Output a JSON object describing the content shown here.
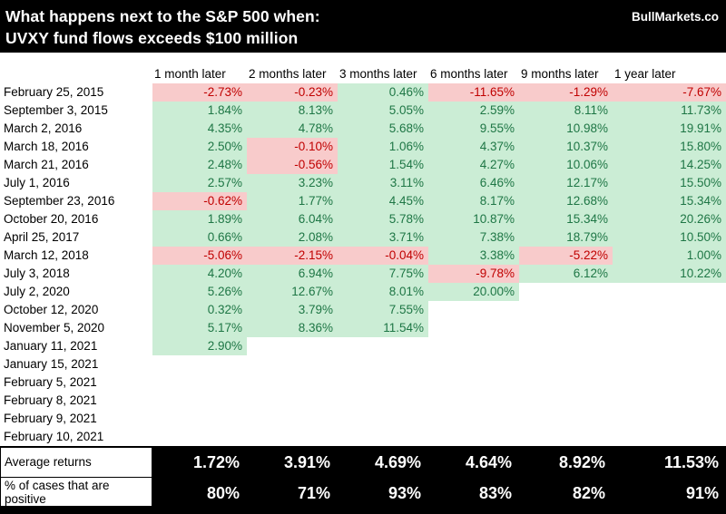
{
  "header": {
    "title_line1": "What happens next to the S&P 500 when:",
    "title_line2": "UVXY fund flows exceeds $100 million",
    "brand": "BullMarkets.co"
  },
  "table": {
    "columns": [
      "1 month later",
      "2 months later",
      "3 months later",
      "6 months later",
      "9 months later",
      "1 year later"
    ],
    "rows": [
      {
        "date": "February 25, 2015",
        "values": [
          "-2.73%",
          "-0.23%",
          "0.46%",
          "-11.65%",
          "-1.29%",
          "-7.67%"
        ]
      },
      {
        "date": "September 3, 2015",
        "values": [
          "1.84%",
          "8.13%",
          "5.05%",
          "2.59%",
          "8.11%",
          "11.73%"
        ]
      },
      {
        "date": "March 2, 2016",
        "values": [
          "4.35%",
          "4.78%",
          "5.68%",
          "9.55%",
          "10.98%",
          "19.91%"
        ]
      },
      {
        "date": "March 18, 2016",
        "values": [
          "2.50%",
          "-0.10%",
          "1.06%",
          "4.37%",
          "10.37%",
          "15.80%"
        ]
      },
      {
        "date": "March 21, 2016",
        "values": [
          "2.48%",
          "-0.56%",
          "1.54%",
          "4.27%",
          "10.06%",
          "14.25%"
        ]
      },
      {
        "date": "July 1, 2016",
        "values": [
          "2.57%",
          "3.23%",
          "3.11%",
          "6.46%",
          "12.17%",
          "15.50%"
        ]
      },
      {
        "date": "September 23, 2016",
        "values": [
          "-0.62%",
          "1.77%",
          "4.45%",
          "8.17%",
          "12.68%",
          "15.34%"
        ]
      },
      {
        "date": "October 20, 2016",
        "values": [
          "1.89%",
          "6.04%",
          "5.78%",
          "10.87%",
          "15.34%",
          "20.26%"
        ]
      },
      {
        "date": "April 25, 2017",
        "values": [
          "0.66%",
          "2.08%",
          "3.71%",
          "7.38%",
          "18.79%",
          "10.50%"
        ]
      },
      {
        "date": "March 12, 2018",
        "values": [
          "-5.06%",
          "-2.15%",
          "-0.04%",
          "3.38%",
          "-5.22%",
          "1.00%"
        ]
      },
      {
        "date": "July 3, 2018",
        "values": [
          "4.20%",
          "6.94%",
          "7.75%",
          "-9.78%",
          "6.12%",
          "10.22%"
        ]
      },
      {
        "date": "July 2, 2020",
        "values": [
          "5.26%",
          "12.67%",
          "8.01%",
          "20.00%",
          "",
          ""
        ]
      },
      {
        "date": "October 12, 2020",
        "values": [
          "0.32%",
          "3.79%",
          "7.55%",
          "",
          "",
          ""
        ]
      },
      {
        "date": "November 5, 2020",
        "values": [
          "5.17%",
          "8.36%",
          "11.54%",
          "",
          "",
          ""
        ]
      },
      {
        "date": "January 11, 2021",
        "values": [
          "2.90%",
          "",
          "",
          "",
          "",
          ""
        ]
      },
      {
        "date": "January 15, 2021",
        "values": [
          "",
          "",
          "",
          "",
          "",
          ""
        ]
      },
      {
        "date": "February 5, 2021",
        "values": [
          "",
          "",
          "",
          "",
          "",
          ""
        ]
      },
      {
        "date": "February 8, 2021",
        "values": [
          "",
          "",
          "",
          "",
          "",
          ""
        ]
      },
      {
        "date": "February 9, 2021",
        "values": [
          "",
          "",
          "",
          "",
          "",
          ""
        ]
      },
      {
        "date": "February 10, 2021",
        "values": [
          "",
          "",
          "",
          "",
          "",
          ""
        ]
      }
    ],
    "summary": [
      {
        "label": "Average returns",
        "values": [
          "1.72%",
          "3.91%",
          "4.69%",
          "4.64%",
          "8.92%",
          "11.53%"
        ]
      },
      {
        "label": "% of cases that are positive",
        "values": [
          "80%",
          "71%",
          "93%",
          "83%",
          "82%",
          "91%"
        ]
      }
    ]
  },
  "colors": {
    "positive_bg": "#CBEDD5",
    "positive_text": "#1E7645",
    "negative_bg": "#F8CBCB",
    "negative_text": "#C00000",
    "header_bg": "#000000",
    "header_text": "#FFFFFF"
  },
  "chart_data": {
    "type": "table",
    "title": "What happens next to the S&P 500 when: UVXY fund flows exceeds $100 million",
    "source": "BullMarkets.co",
    "columns": [
      "1 month later",
      "2 months later",
      "3 months later",
      "6 months later",
      "9 months later",
      "1 year later"
    ],
    "rows": [
      {
        "date": "February 25, 2015",
        "values": [
          -2.73,
          -0.23,
          0.46,
          -11.65,
          -1.29,
          -7.67
        ]
      },
      {
        "date": "September 3, 2015",
        "values": [
          1.84,
          8.13,
          5.05,
          2.59,
          8.11,
          11.73
        ]
      },
      {
        "date": "March 2, 2016",
        "values": [
          4.35,
          4.78,
          5.68,
          9.55,
          10.98,
          19.91
        ]
      },
      {
        "date": "March 18, 2016",
        "values": [
          2.5,
          -0.1,
          1.06,
          4.37,
          10.37,
          15.8
        ]
      },
      {
        "date": "March 21, 2016",
        "values": [
          2.48,
          -0.56,
          1.54,
          4.27,
          10.06,
          14.25
        ]
      },
      {
        "date": "July 1, 2016",
        "values": [
          2.57,
          3.23,
          3.11,
          6.46,
          12.17,
          15.5
        ]
      },
      {
        "date": "September 23, 2016",
        "values": [
          -0.62,
          1.77,
          4.45,
          8.17,
          12.68,
          15.34
        ]
      },
      {
        "date": "October 20, 2016",
        "values": [
          1.89,
          6.04,
          5.78,
          10.87,
          15.34,
          20.26
        ]
      },
      {
        "date": "April 25, 2017",
        "values": [
          0.66,
          2.08,
          3.71,
          7.38,
          18.79,
          10.5
        ]
      },
      {
        "date": "March 12, 2018",
        "values": [
          -5.06,
          -2.15,
          -0.04,
          3.38,
          -5.22,
          1.0
        ]
      },
      {
        "date": "July 3, 2018",
        "values": [
          4.2,
          6.94,
          7.75,
          -9.78,
          6.12,
          10.22
        ]
      },
      {
        "date": "July 2, 2020",
        "values": [
          5.26,
          12.67,
          8.01,
          20.0,
          null,
          null
        ]
      },
      {
        "date": "October 12, 2020",
        "values": [
          0.32,
          3.79,
          7.55,
          null,
          null,
          null
        ]
      },
      {
        "date": "November 5, 2020",
        "values": [
          5.17,
          8.36,
          11.54,
          null,
          null,
          null
        ]
      },
      {
        "date": "January 11, 2021",
        "values": [
          2.9,
          null,
          null,
          null,
          null,
          null
        ]
      },
      {
        "date": "January 15, 2021",
        "values": [
          null,
          null,
          null,
          null,
          null,
          null
        ]
      },
      {
        "date": "February 5, 2021",
        "values": [
          null,
          null,
          null,
          null,
          null,
          null
        ]
      },
      {
        "date": "February 8, 2021",
        "values": [
          null,
          null,
          null,
          null,
          null,
          null
        ]
      },
      {
        "date": "February 9, 2021",
        "values": [
          null,
          null,
          null,
          null,
          null,
          null
        ]
      },
      {
        "date": "February 10, 2021",
        "values": [
          null,
          null,
          null,
          null,
          null,
          null
        ]
      }
    ],
    "average_returns": [
      1.72,
      3.91,
      4.69,
      4.64,
      8.92,
      11.53
    ],
    "pct_cases_positive": [
      80,
      71,
      93,
      83,
      82,
      91
    ],
    "cell_color_rule": "green background for positive values, pink background for negative values"
  }
}
